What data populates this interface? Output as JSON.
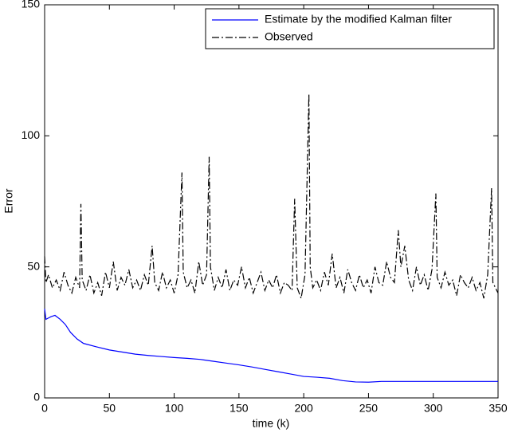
{
  "chart_data": {
    "type": "line",
    "xlabel": "time (k)",
    "ylabel": "Error",
    "xlim": [
      0,
      350
    ],
    "ylim": [
      0,
      150
    ],
    "xticks": [
      0,
      50,
      100,
      150,
      200,
      250,
      300,
      350
    ],
    "yticks": [
      0,
      50,
      100,
      150
    ],
    "legend": "upper right",
    "series": [
      {
        "name": "Estimate by the modified Kalman filter",
        "color": "#0000ff",
        "linestyle": "solid",
        "x": [
          0,
          1,
          3,
          5,
          8,
          12,
          16,
          20,
          25,
          30,
          40,
          50,
          60,
          70,
          80,
          90,
          100,
          110,
          120,
          130,
          140,
          150,
          160,
          170,
          180,
          190,
          200,
          210,
          220,
          230,
          240,
          250,
          260,
          300,
          350
        ],
        "values": [
          34,
          30,
          30.5,
          31,
          31.5,
          30,
          28,
          25,
          22.5,
          20.8,
          19.5,
          18.3,
          17.5,
          16.7,
          16.2,
          15.8,
          15.4,
          15.1,
          14.7,
          14,
          13.3,
          12.6,
          11.8,
          10.9,
          10,
          9.1,
          8.2,
          7.9,
          7.5,
          6.6,
          6.1,
          6,
          6.3,
          6.3,
          6.3
        ]
      },
      {
        "name": "Observed",
        "color": "#000000",
        "linestyle": "dashdot",
        "x": [
          0,
          1,
          3,
          6,
          9,
          12,
          15,
          18,
          21,
          24,
          27,
          28,
          29,
          32,
          35,
          38,
          41,
          44,
          47,
          50,
          53,
          56,
          59,
          62,
          65,
          68,
          71,
          74,
          77,
          80,
          83,
          85,
          88,
          91,
          94,
          97,
          100,
          103,
          106,
          107,
          110,
          113,
          116,
          119,
          122,
          125,
          127,
          128,
          131,
          134,
          137,
          140,
          143,
          146,
          149,
          152,
          155,
          158,
          161,
          164,
          167,
          170,
          173,
          176,
          179,
          182,
          185,
          188,
          191,
          193,
          195,
          198,
          201,
          204,
          205,
          207,
          210,
          213,
          216,
          219,
          222,
          225,
          228,
          231,
          234,
          237,
          240,
          243,
          246,
          249,
          252,
          255,
          258,
          261,
          264,
          267,
          270,
          273,
          275,
          278,
          281,
          284,
          287,
          290,
          293,
          296,
          299,
          302,
          303,
          306,
          309,
          312,
          315,
          318,
          321,
          324,
          327,
          330,
          333,
          336,
          339,
          342,
          345,
          346,
          348,
          350
        ],
        "values": [
          54,
          44,
          47,
          42,
          45,
          41,
          48,
          43,
          40,
          46,
          42,
          74,
          45,
          41,
          47,
          40,
          44,
          39,
          48,
          42,
          52,
          41,
          46,
          43,
          49,
          42,
          45,
          41,
          47,
          43,
          58,
          44,
          41,
          48,
          42,
          45,
          40,
          47,
          86,
          48,
          42,
          45,
          40,
          52,
          43,
          47,
          92,
          50,
          41,
          46,
          42,
          49,
          41,
          45,
          43,
          50,
          42,
          46,
          40,
          44,
          48,
          41,
          45,
          42,
          47,
          40,
          44,
          43,
          41,
          76,
          42,
          38,
          47,
          116,
          50,
          42,
          45,
          41,
          48,
          43,
          55,
          42,
          46,
          40,
          49,
          44,
          41,
          47,
          42,
          45,
          40,
          50,
          44,
          43,
          52,
          46,
          44,
          64,
          50,
          58,
          45,
          41,
          50,
          43,
          47,
          41,
          49,
          78,
          46,
          42,
          48,
          43,
          45,
          39,
          47,
          44,
          42,
          46,
          41,
          44,
          38,
          47,
          80,
          44,
          42,
          40
        ]
      }
    ]
  }
}
